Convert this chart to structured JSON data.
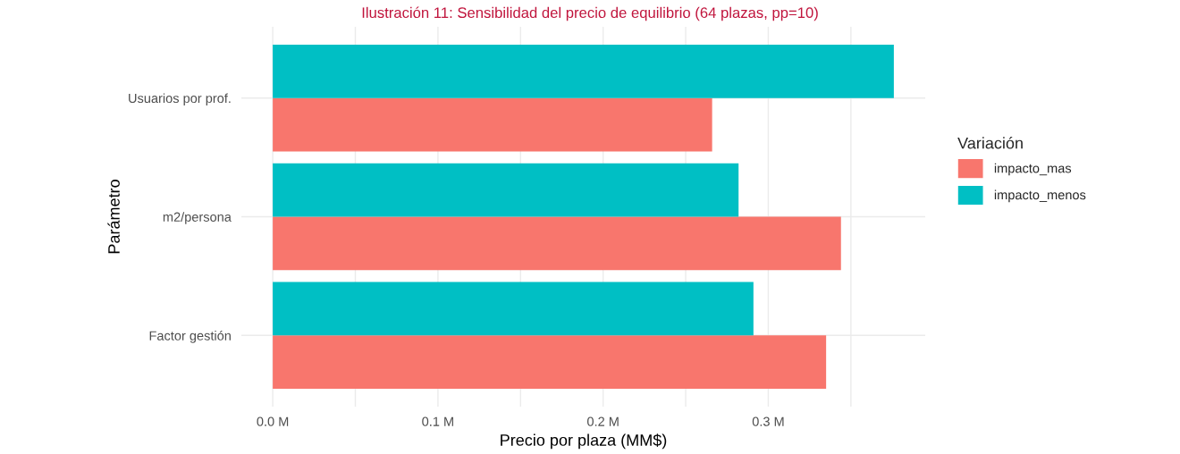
{
  "chart_data": {
    "type": "bar",
    "orientation": "horizontal",
    "title": "Ilustración 11: Sensibilidad del precio de equilibrio (64 plazas, pp=10)",
    "xlabel": "Precio por plaza (MM$)",
    "ylabel": "Parámetro",
    "legend_title": "Variación",
    "categories": [
      "Usuarios por prof.",
      "m2/persona",
      "Factor gestión"
    ],
    "series": [
      {
        "name": "impacto_mas",
        "color": "#f8766d",
        "values": [
          0.266,
          0.344,
          0.335
        ]
      },
      {
        "name": "impacto_menos",
        "color": "#00bfc4",
        "values": [
          0.376,
          0.282,
          0.291
        ]
      }
    ],
    "xlim": [
      -0.019,
      0.395
    ],
    "xticks": [
      {
        "value": 0,
        "label": "0.0 M"
      },
      {
        "value": 0.05,
        "label": null
      },
      {
        "value": 0.1,
        "label": "0.1 M"
      },
      {
        "value": 0.15,
        "label": null
      },
      {
        "value": 0.2,
        "label": "0.2 M"
      },
      {
        "value": 0.25,
        "label": null
      },
      {
        "value": 0.3,
        "label": "0.3 M"
      },
      {
        "value": 0.35,
        "label": null
      }
    ],
    "grid": true,
    "legend": "right"
  }
}
